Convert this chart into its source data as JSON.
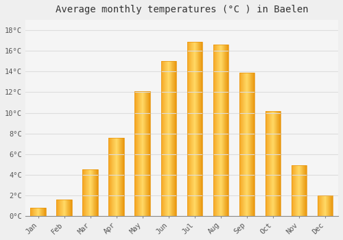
{
  "title": "Average monthly temperatures (°C ) in Baelen",
  "months": [
    "Jan",
    "Feb",
    "Mar",
    "Apr",
    "May",
    "Jun",
    "Jul",
    "Aug",
    "Sep",
    "Oct",
    "Nov",
    "Dec"
  ],
  "temperatures": [
    0.8,
    1.6,
    4.5,
    7.6,
    12.1,
    15.0,
    16.9,
    16.6,
    13.9,
    10.2,
    4.9,
    2.0
  ],
  "bar_color_left": "#F5A623",
  "bar_color_center": "#FFD966",
  "bar_color_right": "#E8940A",
  "background_color": "#EFEFEF",
  "plot_bg_color": "#F5F5F5",
  "grid_color": "#DDDDDD",
  "yticks": [
    0,
    2,
    4,
    6,
    8,
    10,
    12,
    14,
    16,
    18
  ],
  "ylim": [
    0,
    19.0
  ],
  "title_fontsize": 10,
  "tick_fontsize": 7.5,
  "tick_font": "monospace",
  "bar_width": 0.6
}
